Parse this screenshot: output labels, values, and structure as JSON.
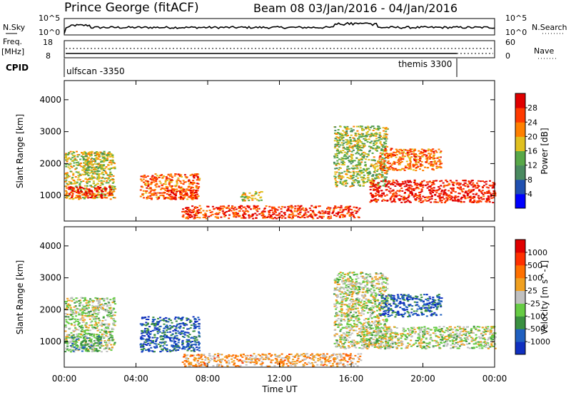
{
  "header": {
    "station": "Prince George (fitACF)",
    "beam": "Beam 08",
    "date_range": "03/Jan/2016 - 04/Jan/2016"
  },
  "noise_panel": {
    "left_label": "N.Sky",
    "right_label": "N.Search",
    "left_ticks": [
      "10^5",
      "10^0"
    ],
    "right_ticks": [
      "10^5",
      "10^0"
    ]
  },
  "freq_panel": {
    "left_label_1": "Freq.",
    "left_label_2": "[MHz]",
    "right_label": "Nave",
    "left_ticks": [
      "18",
      "8"
    ],
    "right_ticks": [
      "60",
      "0"
    ]
  },
  "cpid": {
    "label": "CPID",
    "segments": [
      {
        "name": "ulfscan -3350",
        "start_hour": 0,
        "end_hour": 22.0
      },
      {
        "name": "themis 3300",
        "start_hour": 22.0,
        "end_hour": 24.0
      }
    ]
  },
  "colors": {
    "power_scale": [
      "#0000ff",
      "#2050b0",
      "#4a8a60",
      "#58a848",
      "#e0c020",
      "#ff8000",
      "#ff3a00",
      "#e00000"
    ],
    "velocity_scale": [
      "#1030c0",
      "#2060c0",
      "#3a9040",
      "#66cc44",
      "#c0c0c0",
      "#f0a020",
      "#ff7000",
      "#ff3000",
      "#e00000"
    ]
  },
  "chart_data": [
    {
      "type": "heatmap",
      "name": "power",
      "ylabel": "Slant Range [km]",
      "xlabel": "",
      "y_ticks": [
        1000,
        2000,
        3000,
        4000
      ],
      "ylim": [
        200,
        4600
      ],
      "x_ticks": [
        "00:00",
        "04:00",
        "08:00",
        "12:00",
        "16:00",
        "20:00",
        "00:00"
      ],
      "xlim_hours": [
        0,
        24
      ],
      "colorbar": {
        "label": "Power [dB]",
        "ticks": [
          "4",
          "8",
          "12",
          "16",
          "20",
          "24",
          "28"
        ],
        "range": [
          0,
          30
        ]
      },
      "regions": [
        {
          "t0": 0.0,
          "t1": 2.8,
          "r0": 900,
          "r1": 2400,
          "level": 0.55
        },
        {
          "t0": 0.2,
          "t1": 2.6,
          "r0": 950,
          "r1": 1300,
          "level": 0.9
        },
        {
          "t0": 1.0,
          "t1": 2.2,
          "r0": 1800,
          "r1": 2400,
          "level": 0.5
        },
        {
          "t0": 4.2,
          "t1": 7.5,
          "r0": 900,
          "r1": 1700,
          "level": 0.75
        },
        {
          "t0": 5.5,
          "t1": 7.3,
          "r0": 900,
          "r1": 1200,
          "level": 0.85
        },
        {
          "t0": 9.8,
          "t1": 11.0,
          "r0": 850,
          "r1": 1150,
          "level": 0.55
        },
        {
          "t0": 6.5,
          "t1": 16.5,
          "r0": 300,
          "r1": 700,
          "level": 0.85
        },
        {
          "t0": 15.0,
          "t1": 18.0,
          "r0": 1300,
          "r1": 3200,
          "level": 0.5
        },
        {
          "t0": 17.0,
          "t1": 24.0,
          "r0": 800,
          "r1": 1500,
          "level": 0.9
        },
        {
          "t0": 17.5,
          "t1": 21.0,
          "r0": 1800,
          "r1": 2500,
          "level": 0.75
        }
      ]
    },
    {
      "type": "heatmap",
      "name": "velocity",
      "ylabel": "Slant Range [km]",
      "xlabel": "Time UT",
      "y_ticks": [
        1000,
        2000,
        3000,
        4000
      ],
      "ylim": [
        200,
        4600
      ],
      "x_ticks": [
        "00:00",
        "04:00",
        "08:00",
        "12:00",
        "16:00",
        "20:00",
        "00:00"
      ],
      "xlim_hours": [
        0,
        24
      ],
      "colorbar": {
        "label": "Velocity [m s^-1]",
        "ticks": [
          "1000",
          "500",
          "100",
          "25",
          "-25",
          "-100",
          "-500",
          "-1000"
        ],
        "range": [
          -1200,
          1200
        ]
      },
      "regions": [
        {
          "t0": 0.0,
          "t1": 2.8,
          "r0": 700,
          "r1": 2400,
          "level": 0.45
        },
        {
          "t0": 0.3,
          "t1": 2.0,
          "r0": 700,
          "r1": 1200,
          "level": 0.3
        },
        {
          "t0": 4.2,
          "t1": 7.5,
          "r0": 700,
          "r1": 1800,
          "level": 0.15
        },
        {
          "t0": 6.5,
          "t1": 16.5,
          "r0": 250,
          "r1": 650,
          "level": 0.62
        },
        {
          "t0": 15.0,
          "t1": 18.0,
          "r0": 800,
          "r1": 3200,
          "level": 0.48
        },
        {
          "t0": 16.5,
          "t1": 24.0,
          "r0": 800,
          "r1": 1500,
          "level": 0.47
        },
        {
          "t0": 17.5,
          "t1": 21.0,
          "r0": 1800,
          "r1": 2500,
          "level": 0.15
        }
      ]
    }
  ]
}
